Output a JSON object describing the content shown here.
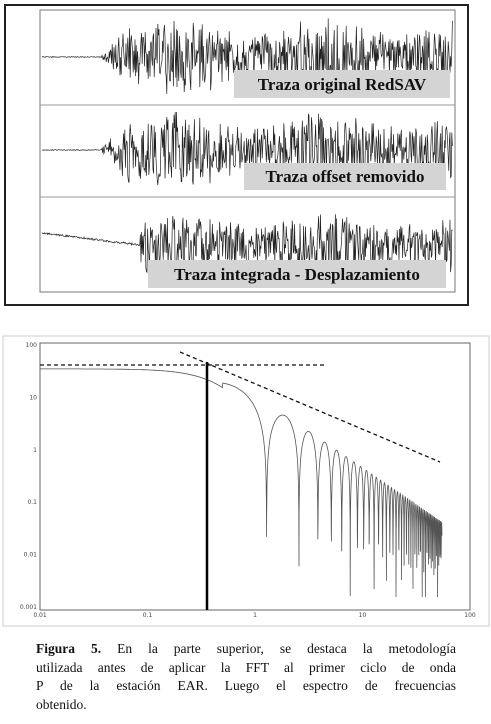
{
  "top_panel": {
    "traces": [
      {
        "label": "Traza original RedSAV"
      },
      {
        "label": "Traza offset removido"
      },
      {
        "label": "Traza integrada - Desplazamiento"
      }
    ]
  },
  "bottom_panel": {
    "x_ticks": [
      "0.01",
      "0.1",
      "1",
      "10",
      "100"
    ],
    "y_ticks": [
      "100",
      "10",
      "1",
      "0.1",
      "0.01",
      "0.001"
    ]
  },
  "caption": {
    "label": "Figura 5.",
    "lines": [
      " En la parte superior, se destaca la metodología",
      "utilizada antes de aplicar la FFT al primer ciclo de onda",
      "P de la estación EAR. Luego el espectro de frecuencias",
      "obtenido."
    ]
  }
}
